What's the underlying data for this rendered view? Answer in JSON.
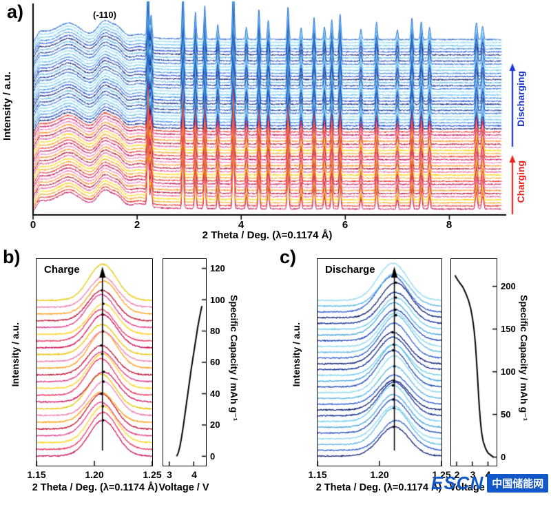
{
  "watermark": {
    "prefix": "ESCN",
    "suffix": "中国储能网",
    "color": "#1257c8"
  },
  "chart_data": [
    {
      "id": "a",
      "type": "line",
      "panel_label": "a)",
      "xlabel": "2 Theta / Deg. (λ=0.1174 Å)",
      "ylabel": "Intensity / a.u.",
      "xlim": [
        0,
        9
      ],
      "x_ticks": [
        0,
        2,
        4,
        6,
        8
      ],
      "x_tick_labels": [
        "0",
        "2",
        "4",
        "6",
        "8"
      ],
      "annotation": {
        "text": "(-110)",
        "x": 1.38
      },
      "right_annotations": [
        {
          "label": "Discharging",
          "color": "#1b35cf",
          "arrow": "up"
        },
        {
          "label": "Charging",
          "color": "#e8251f",
          "arrow": "up"
        }
      ],
      "groups": [
        {
          "name": "Charging",
          "count": 26,
          "palette": [
            "#c40f5b",
            "#e8312a",
            "#f5a623",
            "#ffd400",
            "#e85d9e",
            "#b01030",
            "#ff8c1a",
            "#f280b6"
          ]
        },
        {
          "name": "Discharging",
          "count": 30,
          "palette": [
            "#0b1f78",
            "#1d4fd7",
            "#3f8fe0",
            "#67c3ec",
            "#8fd9f4",
            "#2a6fd4",
            "#123a9e",
            "#55b4e6"
          ]
        }
      ],
      "broad_peaks": [
        {
          "x": 0.7,
          "h": 0.36,
          "w": 0.2
        },
        {
          "x": 1.38,
          "h": 0.5,
          "w": 0.13
        },
        {
          "x": 1.63,
          "h": 0.28,
          "w": 0.1
        },
        {
          "x": 2.05,
          "h": 0.12,
          "w": 0.15
        }
      ],
      "sharp_peaks": [
        {
          "x": 2.21,
          "h": 1.0,
          "w": 0.016
        },
        {
          "x": 2.27,
          "h": 0.34,
          "w": 0.015
        },
        {
          "x": 2.88,
          "h": 0.8,
          "w": 0.015
        },
        {
          "x": 3.12,
          "h": 0.4,
          "w": 0.015
        },
        {
          "x": 3.3,
          "h": 0.5,
          "w": 0.015
        },
        {
          "x": 3.55,
          "h": 0.22,
          "w": 0.015
        },
        {
          "x": 3.85,
          "h": 0.92,
          "w": 0.016
        },
        {
          "x": 4.1,
          "h": 0.18,
          "w": 0.015
        },
        {
          "x": 4.34,
          "h": 0.46,
          "w": 0.015
        },
        {
          "x": 4.52,
          "h": 0.3,
          "w": 0.015
        },
        {
          "x": 4.9,
          "h": 0.5,
          "w": 0.016
        },
        {
          "x": 5.15,
          "h": 0.18,
          "w": 0.015
        },
        {
          "x": 5.4,
          "h": 0.33,
          "w": 0.015
        },
        {
          "x": 5.6,
          "h": 0.2,
          "w": 0.015
        },
        {
          "x": 5.74,
          "h": 0.3,
          "w": 0.015
        },
        {
          "x": 5.9,
          "h": 0.38,
          "w": 0.015
        },
        {
          "x": 6.3,
          "h": 0.15,
          "w": 0.015
        },
        {
          "x": 6.6,
          "h": 0.26,
          "w": 0.016
        },
        {
          "x": 7.0,
          "h": 0.15,
          "w": 0.015
        },
        {
          "x": 7.28,
          "h": 0.32,
          "w": 0.016
        },
        {
          "x": 7.46,
          "h": 0.28,
          "w": 0.016
        },
        {
          "x": 7.62,
          "h": 0.18,
          "w": 0.015
        },
        {
          "x": 8.52,
          "h": 0.26,
          "w": 0.018
        },
        {
          "x": 8.64,
          "h": 0.2,
          "w": 0.018
        }
      ]
    },
    {
      "id": "b",
      "type": "line",
      "panel_label": "b)",
      "title": "Charge",
      "xlabel": "2 Theta / Deg. (λ=0.1174 Å)",
      "ylabel": "Intensity / a.u.",
      "xlim": [
        1.15,
        1.25
      ],
      "x_ticks": [
        1.15,
        1.2,
        1.25
      ],
      "x_tick_labels": [
        "1.15",
        "1.20",
        "1.25"
      ],
      "peak_center": 1.207,
      "peak_sigma": 0.012,
      "curve_count": 24,
      "palette": [
        "#d0105c",
        "#f0325f",
        "#ffd21f",
        "#e23b8e",
        "#c00f2f",
        "#ff9e1b",
        "#ef7fb4",
        "#e8c400"
      ],
      "inset": {
        "xlabel": "Voltage / V",
        "ylabel": "Specific Capacity / mAh g⁻¹",
        "xlim": [
          2.75,
          4.5
        ],
        "x_ticks": [
          3,
          4
        ],
        "x_tick_labels": [
          "3",
          "4"
        ],
        "ylim": [
          -6,
          126
        ],
        "y_ticks": [
          0,
          20,
          40,
          60,
          80,
          100,
          120
        ],
        "curve": [
          [
            3.3,
            0
          ],
          [
            3.36,
            2
          ],
          [
            3.43,
            6
          ],
          [
            3.5,
            12
          ],
          [
            3.58,
            20
          ],
          [
            3.66,
            29
          ],
          [
            3.74,
            38
          ],
          [
            3.82,
            47
          ],
          [
            3.9,
            56
          ],
          [
            3.98,
            64
          ],
          [
            4.05,
            71
          ],
          [
            4.11,
            77
          ],
          [
            4.17,
            83
          ],
          [
            4.23,
            88
          ],
          [
            4.28,
            92
          ],
          [
            4.32,
            95
          ],
          [
            4.34,
            96
          ]
        ]
      }
    },
    {
      "id": "c",
      "type": "line",
      "panel_label": "c)",
      "title": "Discharge",
      "xlabel": "2 Theta / Deg. (λ=0.1174 Å)",
      "ylabel": "Intensity / a.u.",
      "xlim": [
        1.15,
        1.25
      ],
      "x_ticks": [
        1.15,
        1.2,
        1.25
      ],
      "x_tick_labels": [
        "1.15",
        "1.20",
        "1.25"
      ],
      "peak_center": 1.212,
      "peak_sigma": 0.012,
      "curve_count": 28,
      "palette": [
        "#0c1d74",
        "#2a5fd0",
        "#5fb9e6",
        "#8ed7f2",
        "#1e47b8",
        "#47a8de",
        "#73cdef",
        "#0f2f95"
      ],
      "inset": {
        "xlabel": "Voltage / V",
        "ylabel": "Specific Capacity / mAh g⁻¹",
        "xlim": [
          1.65,
          4.55
        ],
        "x_ticks": [
          2,
          3,
          4
        ],
        "x_tick_labels": [
          "2",
          "3",
          "4"
        ],
        "ylim": [
          -10,
          232
        ],
        "y_ticks": [
          0,
          50,
          100,
          150,
          200
        ],
        "curve": [
          [
            4.35,
            0
          ],
          [
            4.2,
            2
          ],
          [
            4.0,
            5
          ],
          [
            3.85,
            10
          ],
          [
            3.7,
            18
          ],
          [
            3.6,
            28
          ],
          [
            3.52,
            42
          ],
          [
            3.45,
            58
          ],
          [
            3.39,
            76
          ],
          [
            3.33,
            95
          ],
          [
            3.27,
            113
          ],
          [
            3.2,
            132
          ],
          [
            3.12,
            148
          ],
          [
            3.02,
            162
          ],
          [
            2.9,
            174
          ],
          [
            2.75,
            184
          ],
          [
            2.58,
            192
          ],
          [
            2.4,
            199
          ],
          [
            2.2,
            204
          ],
          [
            2.05,
            208
          ],
          [
            1.95,
            211
          ],
          [
            1.9,
            213
          ]
        ]
      }
    }
  ]
}
